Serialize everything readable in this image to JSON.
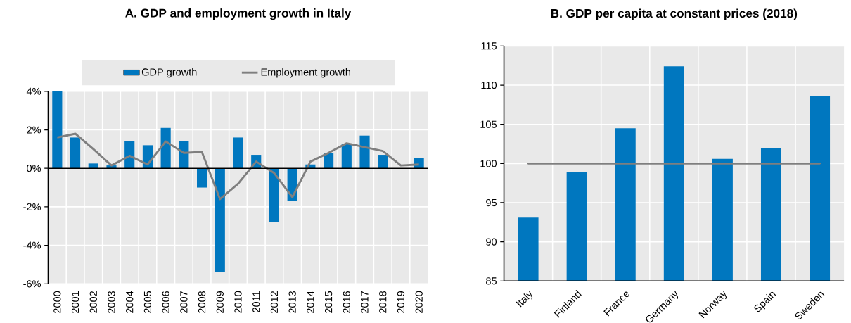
{
  "chart_data": [
    {
      "type": "bar",
      "title": "A. GDP and employment growth in Italy",
      "categories": [
        "2000",
        "2001",
        "2002",
        "2003",
        "2004",
        "2005",
        "2006",
        "2007",
        "2008",
        "2009",
        "2010",
        "2011",
        "2012",
        "2013",
        "2014",
        "2015",
        "2016",
        "2017",
        "2018",
        "2019",
        "2020"
      ],
      "series": [
        {
          "name": "GDP growth",
          "type": "bar",
          "color": "#0077bf",
          "values": [
            4.0,
            1.6,
            0.25,
            0.15,
            1.4,
            1.2,
            2.1,
            1.4,
            -1.0,
            -5.4,
            1.6,
            0.7,
            -2.8,
            -1.7,
            0.2,
            0.8,
            1.25,
            1.7,
            0.7,
            null,
            0.55
          ]
        },
        {
          "name": "Employment growth",
          "type": "line",
          "color": "#7f7f7f",
          "values": [
            1.6,
            1.8,
            1.0,
            0.15,
            0.65,
            0.2,
            1.4,
            0.8,
            0.85,
            -1.6,
            -0.8,
            0.35,
            -0.25,
            -1.5,
            0.35,
            0.8,
            1.3,
            1.1,
            0.9,
            0.15,
            0.2
          ]
        }
      ],
      "ylim": [
        -6,
        4
      ],
      "yticks": [
        {
          "value": -6,
          "label": "-6%"
        },
        {
          "value": -4,
          "label": "-4%"
        },
        {
          "value": -2,
          "label": "-2%"
        },
        {
          "value": 0,
          "label": "0%"
        },
        {
          "value": 2,
          "label": "2%"
        },
        {
          "value": 4,
          "label": "4%"
        }
      ],
      "grid": true,
      "legend": "top"
    },
    {
      "type": "bar",
      "title": "B. GDP per capita at constant prices (2018)",
      "categories": [
        "Italy",
        "Finland",
        "France",
        "Germany",
        "Norway",
        "Spain",
        "Sweden"
      ],
      "values": [
        93.1,
        98.9,
        104.5,
        112.4,
        100.6,
        102.0,
        108.6
      ],
      "color": "#0077bf",
      "ylim": [
        85,
        115
      ],
      "yticks": [
        85,
        90,
        95,
        100,
        105,
        110,
        115
      ],
      "grid": true,
      "ref_lines": [
        {
          "axis": "y",
          "value": 100,
          "color": "#7f7f7f"
        }
      ]
    }
  ]
}
